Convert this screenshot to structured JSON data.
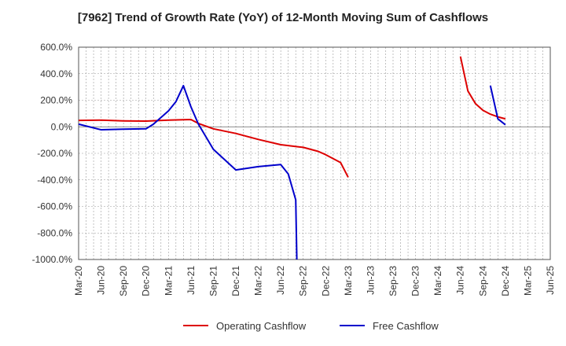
{
  "title": "[7962]  Trend of Growth Rate (YoY) of 12-Month Moving Sum of Cashflows",
  "chart_data": {
    "type": "line",
    "title": "[7962]  Trend of Growth Rate (YoY) of 12-Month Moving Sum of Cashflows",
    "xlabel": "",
    "ylabel": "",
    "ylim": [
      -1000,
      600
    ],
    "y_ticks": [
      600,
      400,
      200,
      0,
      -200,
      -400,
      -600,
      -800,
      -1000
    ],
    "y_tick_labels": [
      "600.0%",
      "400.0%",
      "200.0%",
      "0.0%",
      "-200.0%",
      "-400.0%",
      "-600.0%",
      "-800.0%",
      "-1000.0%"
    ],
    "x_tick_labels": [
      "Mar-20",
      "Jun-20",
      "Sep-20",
      "Dec-20",
      "Mar-21",
      "Jun-21",
      "Sep-21",
      "Dec-21",
      "Mar-22",
      "Jun-22",
      "Sep-22",
      "Dec-22",
      "Mar-23",
      "Jun-23",
      "Sep-23",
      "Dec-23",
      "Mar-24",
      "Jun-24",
      "Sep-24",
      "Dec-24",
      "Mar-25",
      "Jun-25"
    ],
    "grid": true,
    "legend_position": "bottom",
    "series": [
      {
        "name": "Operating Cashflow",
        "color": "#dd0000",
        "points": [
          [
            "2020-03",
            48
          ],
          [
            "2020-06",
            50
          ],
          [
            "2020-09",
            45
          ],
          [
            "2020-12",
            43
          ],
          [
            "2021-03",
            50
          ],
          [
            "2021-06",
            55
          ],
          [
            "2021-07",
            25
          ],
          [
            "2021-09",
            -15
          ],
          [
            "2021-12",
            -50
          ],
          [
            "2022-03",
            -95
          ],
          [
            "2022-06",
            -135
          ],
          [
            "2022-09",
            -155
          ],
          [
            "2022-11",
            -185
          ],
          [
            "2022-12",
            -210
          ],
          [
            "2023-02",
            -270
          ],
          [
            "2023-03",
            -380
          ]
        ],
        "segments_break_after": "2023-03",
        "points_2": [
          [
            "2024-06",
            530
          ],
          [
            "2024-07",
            270
          ],
          [
            "2024-08",
            175
          ],
          [
            "2024-09",
            125
          ],
          [
            "2024-10",
            95
          ],
          [
            "2024-11",
            75
          ],
          [
            "2024-12",
            60
          ]
        ]
      },
      {
        "name": "Free Cashflow",
        "color": "#0000cc",
        "points": [
          [
            "2020-03",
            20
          ],
          [
            "2020-06",
            -22
          ],
          [
            "2020-09",
            -18
          ],
          [
            "2020-12",
            -15
          ],
          [
            "2021-01",
            20
          ],
          [
            "2021-02",
            70
          ],
          [
            "2021-03",
            120
          ],
          [
            "2021-04",
            190
          ],
          [
            "2021-05",
            310
          ],
          [
            "2021-06",
            150
          ],
          [
            "2021-07",
            20
          ],
          [
            "2021-09",
            -170
          ],
          [
            "2021-12",
            -325
          ],
          [
            "2022-03",
            -300
          ],
          [
            "2022-06",
            -285
          ],
          [
            "2022-07",
            -355
          ],
          [
            "2022-08",
            -550
          ],
          [
            "2022-08.15",
            -1000
          ]
        ],
        "points_2": [
          [
            "2024-10",
            310
          ],
          [
            "2024-11",
            60
          ],
          [
            "2024-12",
            15
          ]
        ]
      }
    ]
  }
}
